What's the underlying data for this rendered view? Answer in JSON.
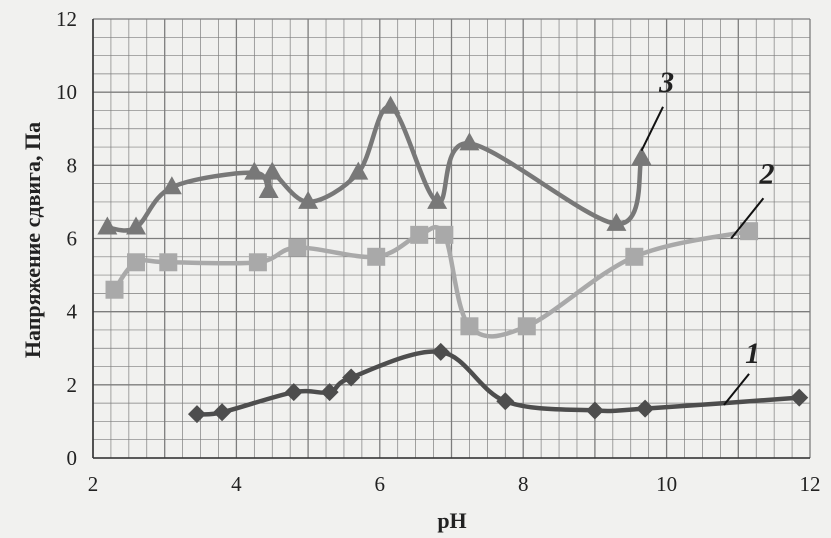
{
  "chart_data": {
    "type": "line",
    "title": "",
    "xlabel": "pH",
    "ylabel": "Напряжение сдвига, Па",
    "xlim": [
      2,
      12
    ],
    "ylim": [
      0,
      12
    ],
    "x_ticks": [
      "2",
      "4",
      "6",
      "8",
      "10",
      "12"
    ],
    "y_ticks": [
      "0",
      "2",
      "4",
      "6",
      "8",
      "10",
      "12"
    ],
    "grid": true,
    "legend": "none",
    "series": [
      {
        "name": "1",
        "color": "#4d4d4d",
        "marker": "diamond",
        "points": [
          [
            3.45,
            1.2
          ],
          [
            3.8,
            1.25
          ],
          [
            4.8,
            1.8
          ],
          [
            5.3,
            1.8
          ],
          [
            5.6,
            2.2
          ],
          [
            6.85,
            2.9
          ],
          [
            7.75,
            1.55
          ],
          [
            9.0,
            1.3
          ],
          [
            9.7,
            1.35
          ],
          [
            11.85,
            1.65
          ]
        ]
      },
      {
        "name": "2",
        "color": "#a9a9a9",
        "marker": "square",
        "points": [
          [
            2.3,
            4.6
          ],
          [
            2.6,
            5.35
          ],
          [
            3.05,
            5.35
          ],
          [
            4.3,
            5.35
          ],
          [
            4.85,
            5.75
          ],
          [
            5.95,
            5.5
          ],
          [
            6.55,
            6.1
          ],
          [
            6.9,
            6.1
          ],
          [
            7.25,
            3.6
          ],
          [
            8.05,
            3.6
          ],
          [
            9.55,
            5.5
          ],
          [
            11.15,
            6.2
          ]
        ]
      },
      {
        "name": "3",
        "color": "#787878",
        "marker": "triangle",
        "points": [
          [
            2.2,
            6.3
          ],
          [
            2.6,
            6.3
          ],
          [
            3.1,
            7.4
          ],
          [
            4.25,
            7.8
          ],
          [
            4.45,
            7.3
          ],
          [
            4.5,
            7.8
          ],
          [
            5.0,
            7.0
          ],
          [
            5.7,
            7.8
          ],
          [
            6.15,
            9.6
          ],
          [
            6.8,
            7.0
          ],
          [
            7.25,
            8.6
          ],
          [
            9.3,
            6.4
          ],
          [
            9.65,
            8.2
          ]
        ]
      }
    ],
    "series_labels": [
      {
        "text": "1",
        "x": 11.2,
        "y": 2.6
      },
      {
        "text": "2",
        "x": 11.4,
        "y": 7.5
      },
      {
        "text": "3",
        "x": 10.0,
        "y": 10.0
      }
    ]
  }
}
